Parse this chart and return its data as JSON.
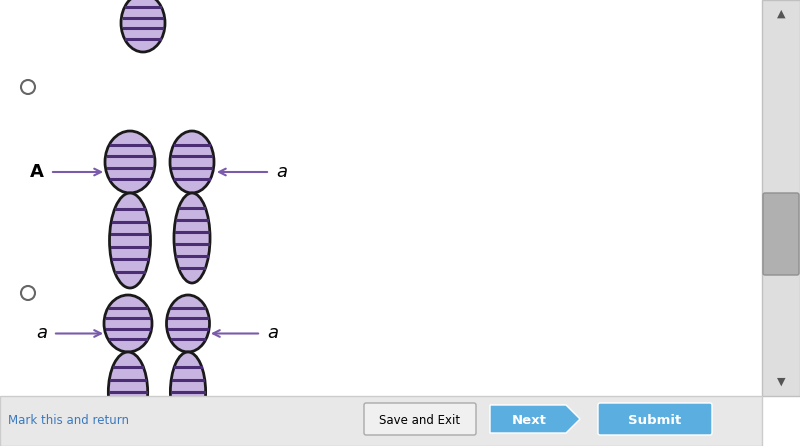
{
  "bg_color": "#ffffff",
  "chr_fill": "#c8b4e0",
  "chr_stripe": "#4a2d72",
  "chr_outline": "#1a1a1a",
  "arrow_color": "#7a5aaa",
  "radio_color": "#666666",
  "toolbar_bg": "#e8e8e8",
  "toolbar_border": "#cccccc",
  "scrollbar_bg": "#dedede",
  "scrollbar_thumb": "#b0b0b0",
  "link_color": "#3a7abf",
  "save_btn_bg": "#f0f0f0",
  "save_btn_border": "#aaaaaa",
  "next_btn_color": "#5baee0",
  "submit_btn_color": "#5baee0",
  "label_A": "A",
  "label_a1": "a",
  "label_a2": "a",
  "label_a3": "a",
  "mark_text": "Mark this and return",
  "save_text": "Save and Exit",
  "next_text": "Next",
  "submit_text": "Submit"
}
